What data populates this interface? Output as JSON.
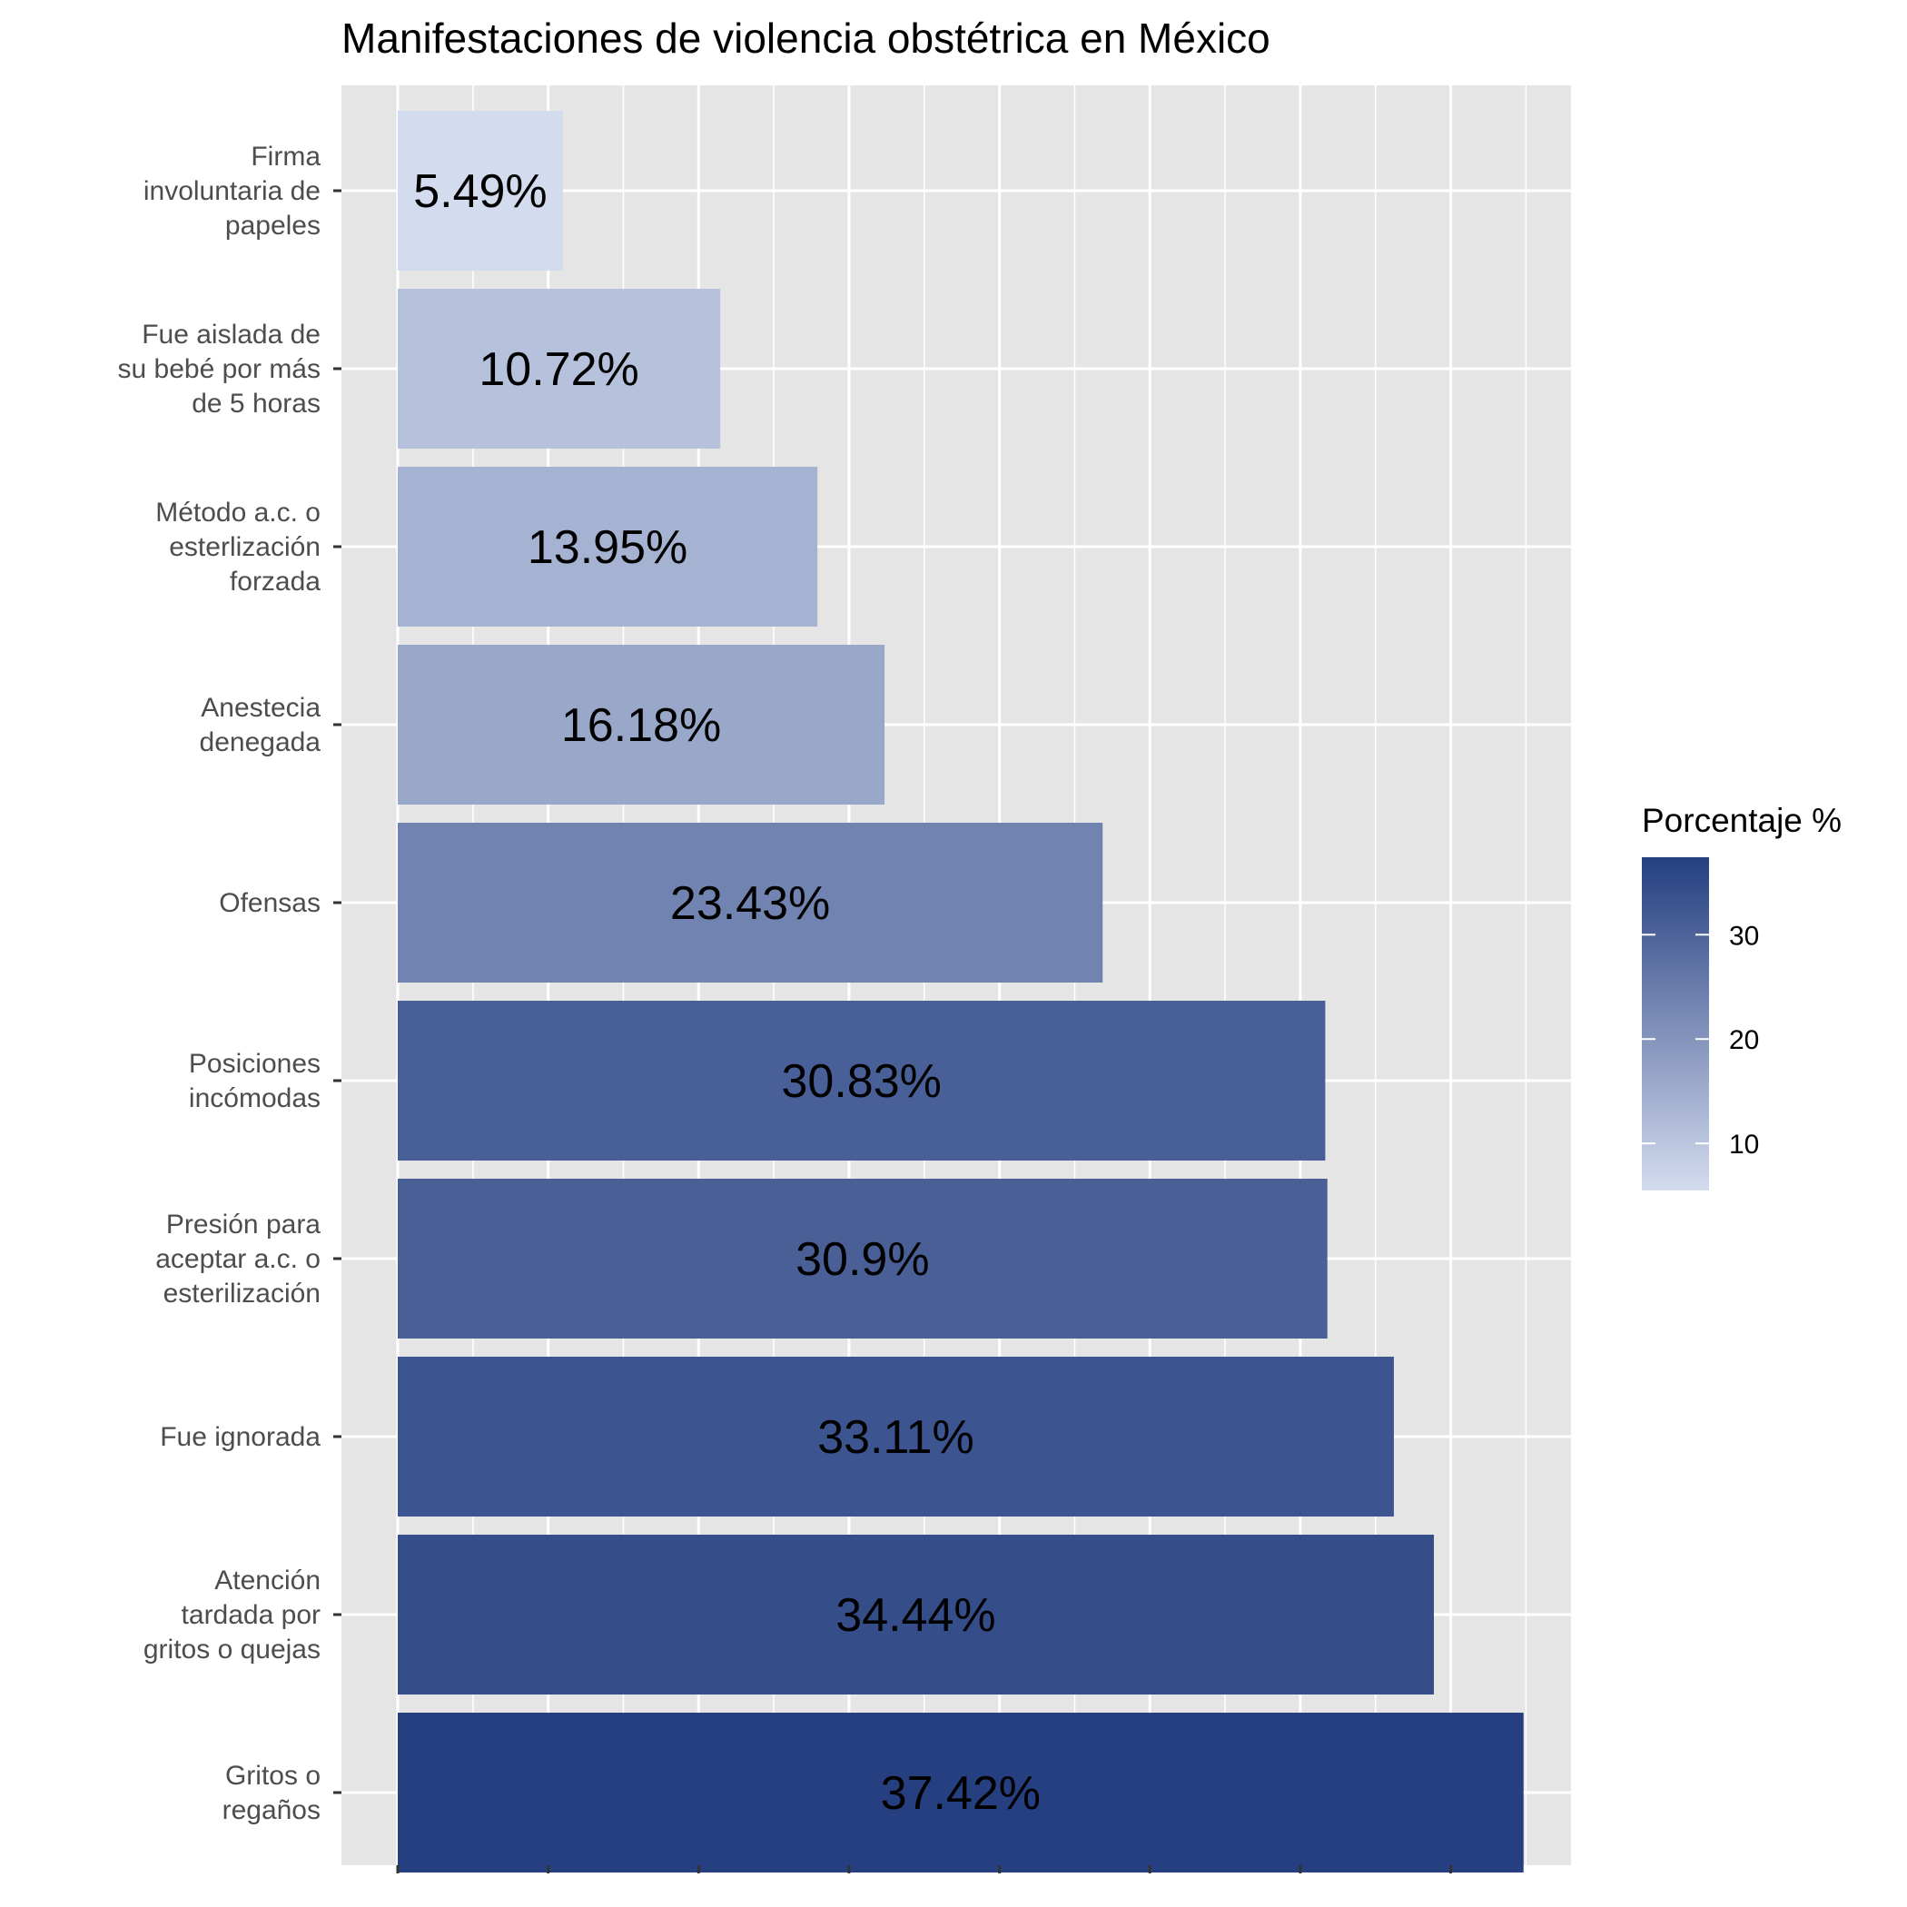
{
  "chart_data": {
    "type": "bar",
    "orientation": "horizontal",
    "title": "Manifestaciones de violencia obstétrica en México",
    "xlabel": "",
    "ylabel": "",
    "xlim": [
      0,
      39.3
    ],
    "grid": true,
    "categories": [
      "Firma involuntaria de papeles",
      "Fue aislada de su bebé por más de 5 horas",
      "Método a.c. o esterlización forzada",
      "Anestecia denegada",
      "Ofensas",
      "Posiciones incómodas",
      "Presión para aceptar a.c. o esterilización",
      "Fue ignorada",
      "Atención tardada por gritos o quejas",
      "Gritos o regaños"
    ],
    "category_label_lines": [
      [
        "Firma",
        "involuntaria de",
        "papeles"
      ],
      [
        "Fue aislada de",
        "su bebé por más",
        "de 5 horas"
      ],
      [
        "Método a.c. o",
        "esterlización",
        "forzada"
      ],
      [
        "Anestecia",
        "denegada"
      ],
      [
        "Ofensas"
      ],
      [
        "Posiciones",
        "incómodas"
      ],
      [
        "Presión para",
        "aceptar a.c. o",
        "esterilización"
      ],
      [
        "Fue ignorada"
      ],
      [
        "Atención",
        "tardada por",
        "gritos o quejas"
      ],
      [
        "Gritos o",
        "regaños"
      ]
    ],
    "values": [
      5.49,
      10.72,
      13.95,
      16.18,
      23.43,
      30.83,
      30.9,
      33.11,
      34.44,
      37.42
    ],
    "data_labels": [
      "5.49%",
      "10.72%",
      "13.95%",
      "16.18%",
      "23.43%",
      "30.83%",
      "30.9%",
      "33.11%",
      "34.44%",
      "37.42%"
    ],
    "legend": {
      "title": "Porcentaje %",
      "position": "right",
      "ticks": [
        10,
        20,
        30
      ],
      "tick_labels": [
        "10",
        "20",
        "30"
      ],
      "range": [
        5.49,
        37.42
      ],
      "color_low": "#d3dbee",
      "color_high": "#253f80"
    },
    "colors": {
      "panel_background": "#e5e5e5",
      "gridline": "#ffffff",
      "axis_tick": "#333333"
    }
  }
}
